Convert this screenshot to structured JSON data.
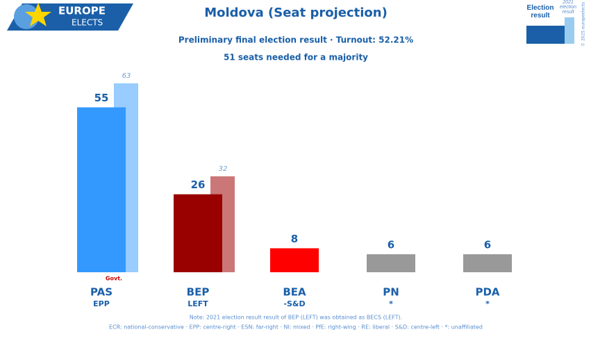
{
  "logo": {
    "line1": "EUROPE",
    "line2": "ELECTS"
  },
  "chart_data": {
    "type": "bar",
    "title": "Moldova (Seat projection)",
    "subtitle": "Preliminary final election result · Turnout: 52.21%",
    "majority": "51 seats needed for a majority",
    "categories": [
      "PAS",
      "BEP",
      "BEA",
      "PN",
      "PDA"
    ],
    "groups": [
      "EPP",
      "LEFT",
      "-S&D",
      "*",
      "*"
    ],
    "series": [
      {
        "name": "Election result",
        "color": "#1a5fa8",
        "values": [
          55,
          26,
          8,
          6,
          6
        ],
        "colors": [
          "#3399ff",
          "#990000",
          "#ff0000",
          "#999999",
          "#999999"
        ]
      },
      {
        "name": "2021 election result",
        "color": "#99ccee",
        "values": [
          63,
          32,
          null,
          null,
          null
        ],
        "colors": [
          "#99ccff",
          "#cc7777",
          null,
          null,
          null
        ]
      }
    ],
    "annotation": {
      "text": "Govt.",
      "category": 0
    },
    "note": "Note: 2021 election result result of BEP (LEFT) was obtained as BECS (LEFT).",
    "footer": "ECR: national-conservative · EPP: centre-right · ESN: far-right · NI: mixed · PfE: right-wing · RE: liberal · S&D: centre-left · *: unaffiliated",
    "copyright": "© 2025 europeelects"
  }
}
